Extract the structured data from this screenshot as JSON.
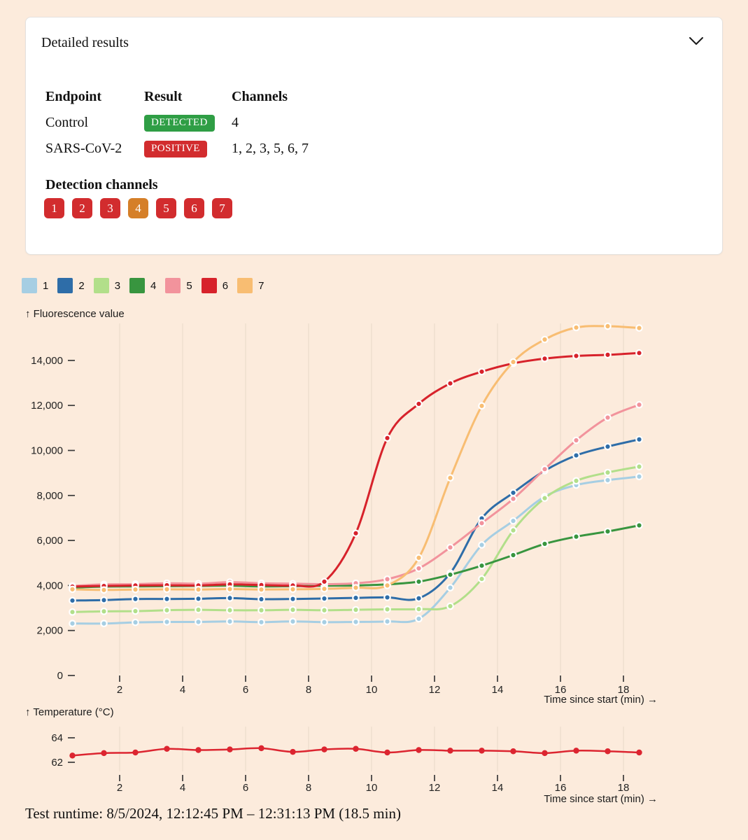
{
  "card": {
    "title": "Detailed results",
    "table": {
      "headers": [
        "Endpoint",
        "Result",
        "Channels"
      ],
      "rows": [
        {
          "endpoint": "Control",
          "result": "DETECTED",
          "result_color": "#2f9e45",
          "channels": "4"
        },
        {
          "endpoint": "SARS-CoV-2",
          "result": "POSITIVE",
          "result_color": "#d22c2e",
          "channels": "1, 2, 3, 5, 6, 7"
        }
      ]
    },
    "detection_channels": {
      "title": "Detection channels",
      "badges": [
        {
          "label": "1",
          "color": "#d22c2e"
        },
        {
          "label": "2",
          "color": "#d22c2e"
        },
        {
          "label": "3",
          "color": "#d22c2e"
        },
        {
          "label": "4",
          "color": "#d57f28"
        },
        {
          "label": "5",
          "color": "#d22c2e"
        },
        {
          "label": "6",
          "color": "#d22c2e"
        },
        {
          "label": "7",
          "color": "#d22c2e"
        }
      ]
    }
  },
  "footer": {
    "runtime": "Test runtime: 8/5/2024, 12:12:45 PM – 12:31:13 PM (18.5 min)"
  },
  "chart_data": [
    {
      "type": "line",
      "title": "Fluorescence amplification curves",
      "ylabel": "↑ Fluorescence value",
      "xlabel": "Time since start (min) →",
      "grid": "vertical",
      "legend_position": "top-left",
      "xlim": [
        0,
        19
      ],
      "ylim": [
        0,
        15700
      ],
      "x_ticks": [
        2,
        4,
        6,
        8,
        10,
        12,
        14,
        16,
        18
      ],
      "y_ticks": [
        0,
        2000,
        4000,
        6000,
        8000,
        10000,
        12000,
        14000
      ],
      "y_tick_labels": [
        "0",
        "2,000",
        "4,000",
        "6,000",
        "8,000",
        "10,000",
        "12,000",
        "14,000"
      ],
      "x": [
        0.5,
        1.5,
        2.5,
        3.5,
        4.5,
        5.5,
        6.5,
        7.5,
        8.5,
        9.5,
        10.5,
        11.5,
        12.5,
        13.5,
        14.5,
        15.5,
        16.5,
        17.5,
        18.5
      ],
      "series": [
        {
          "name": "1",
          "color": "#a6cee3",
          "values": [
            2310,
            2310,
            2360,
            2380,
            2380,
            2400,
            2370,
            2400,
            2370,
            2380,
            2400,
            2520,
            3900,
            5800,
            6870,
            7950,
            8460,
            8680,
            8840
          ]
        },
        {
          "name": "2",
          "color": "#2e6da8",
          "values": [
            3330,
            3350,
            3400,
            3400,
            3410,
            3440,
            3390,
            3400,
            3420,
            3450,
            3470,
            3430,
            4550,
            6980,
            8120,
            9100,
            9780,
            10170,
            10490
          ]
        },
        {
          "name": "3",
          "color": "#b2df8a",
          "values": [
            2820,
            2850,
            2860,
            2900,
            2920,
            2900,
            2900,
            2920,
            2900,
            2920,
            2940,
            2950,
            3080,
            4290,
            6450,
            7880,
            8650,
            9020,
            9280
          ]
        },
        {
          "name": "4",
          "color": "#38953f",
          "values": [
            3900,
            3950,
            3960,
            3970,
            3980,
            3990,
            3960,
            3970,
            3990,
            4000,
            4050,
            4170,
            4480,
            4880,
            5350,
            5850,
            6170,
            6400,
            6670
          ]
        },
        {
          "name": "5",
          "color": "#f2939c",
          "values": [
            3980,
            4050,
            4060,
            4100,
            4080,
            4150,
            4100,
            4080,
            4060,
            4100,
            4280,
            4760,
            5690,
            6770,
            7850,
            9170,
            10450,
            11460,
            12030
          ]
        },
        {
          "name": "6",
          "color": "#d7222b",
          "values": [
            3950,
            3980,
            4000,
            4010,
            4000,
            4050,
            4020,
            4000,
            4170,
            6320,
            10550,
            12070,
            12980,
            13500,
            13870,
            14080,
            14200,
            14250,
            14330
          ]
        },
        {
          "name": "7",
          "color": "#f8bd72",
          "values": [
            3830,
            3800,
            3820,
            3830,
            3820,
            3840,
            3820,
            3830,
            3850,
            3900,
            4000,
            5230,
            8780,
            11980,
            13930,
            14930,
            15460,
            15520,
            15440
          ]
        }
      ]
    },
    {
      "type": "line",
      "title": "Temperature trace",
      "ylabel": "↑ Temperature (°C)",
      "xlabel": "Time since start (min) →",
      "grid": "vertical",
      "legend_position": "none",
      "xlim": [
        0,
        19
      ],
      "ylim": [
        61.5,
        64.5
      ],
      "x_ticks": [
        2,
        4,
        6,
        8,
        10,
        12,
        14,
        16,
        18
      ],
      "y_ticks": [
        62,
        64
      ],
      "y_tick_labels": [
        "62",
        "64"
      ],
      "x": [
        0.5,
        1.5,
        2.5,
        3.5,
        4.5,
        5.5,
        6.5,
        7.5,
        8.5,
        9.5,
        10.5,
        11.5,
        12.5,
        13.5,
        14.5,
        15.5,
        16.5,
        17.5,
        18.5
      ],
      "series": [
        {
          "name": "Temperature",
          "color": "#dc2530",
          "values": [
            62.55,
            62.75,
            62.8,
            63.1,
            63.0,
            63.05,
            63.15,
            62.85,
            63.05,
            63.1,
            62.8,
            63.0,
            62.95,
            62.95,
            62.9,
            62.75,
            62.95,
            62.9,
            62.8
          ]
        }
      ]
    }
  ]
}
